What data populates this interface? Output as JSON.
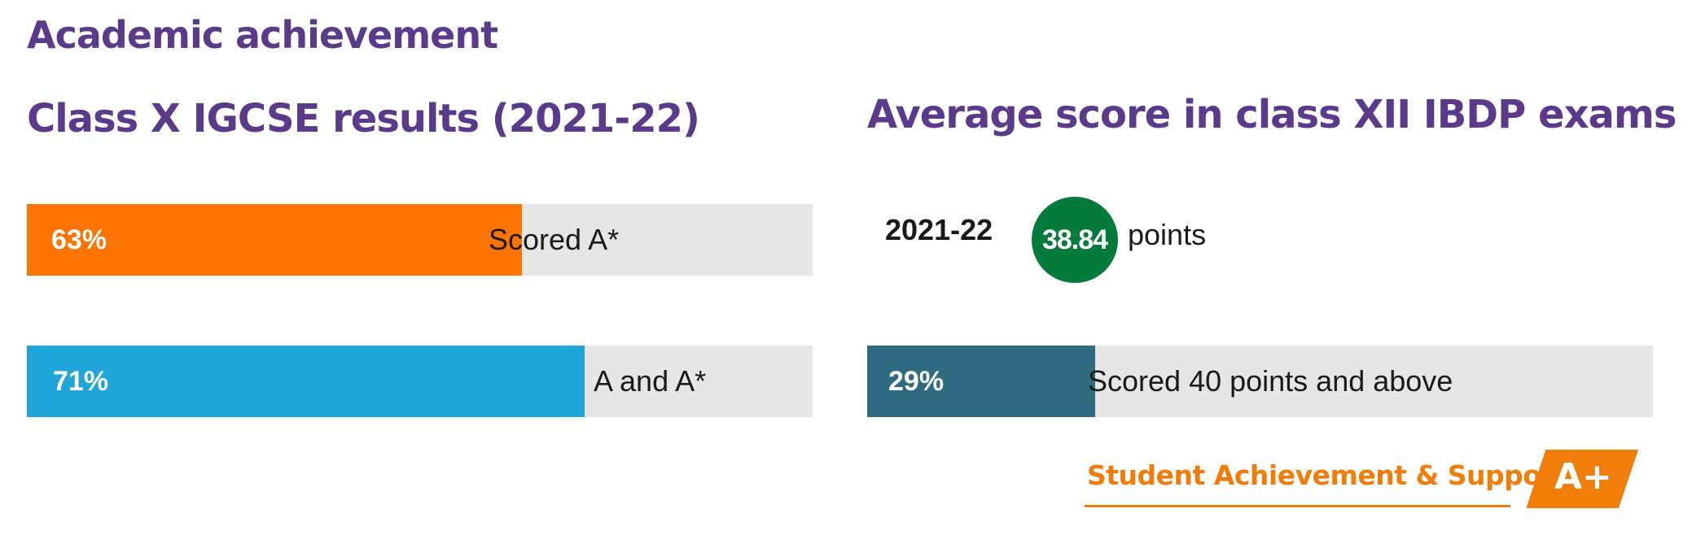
{
  "main_title": "Academic achievement",
  "chart_data": [
    {
      "type": "bar",
      "title": "Class X IGCSE results (2021-22)",
      "orientation": "horizontal",
      "ylim": [
        0,
        100
      ],
      "bars": [
        {
          "value": 63,
          "value_label": "63%",
          "label": "Scored A*",
          "color": "#ff7300"
        },
        {
          "value": 71,
          "value_label": "71%",
          "label": "A and A*",
          "color": "#1fa5d8"
        }
      ]
    },
    {
      "type": "bar",
      "title": "Average score in class XII IBDP exams",
      "highlight": {
        "year": "2021-22",
        "value": 38.84,
        "value_label": "38.84",
        "unit": "points",
        "color": "#047a3b"
      },
      "ylim": [
        0,
        100
      ],
      "bars": [
        {
          "value": 29,
          "value_label": "29%",
          "label": "Scored 40 points and above",
          "color": "#2e6b80"
        }
      ]
    }
  ],
  "badge": {
    "text": "Student Achievement & Support",
    "grade": "A+",
    "color": "#f07c0a"
  },
  "colors": {
    "heading": "#5b3a8c",
    "track": "#e6e6e6"
  }
}
